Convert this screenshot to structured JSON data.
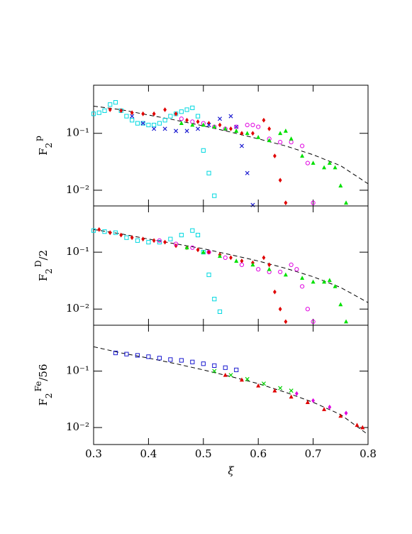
{
  "chart_data": [
    {
      "type": "scatter",
      "log_y": true,
      "ylabel": {
        "base": "F",
        "sub": "2",
        "sup": "p"
      },
      "xlim": [
        0.3,
        0.8
      ],
      "xticks": [
        0.3,
        0.4,
        0.5,
        0.6,
        0.7,
        0.8
      ],
      "ylim": [
        0.0053,
        0.7
      ],
      "yticks": [
        {
          "value": 0.1,
          "label": "10⁻¹"
        },
        {
          "value": 0.01,
          "label": "10⁻²"
        }
      ],
      "series": [
        {
          "color": "#000000",
          "style": "dashed",
          "x": [
            0.3,
            0.35,
            0.4,
            0.45,
            0.5,
            0.55,
            0.6,
            0.65,
            0.7,
            0.75,
            0.8
          ],
          "values": [
            0.3,
            0.26,
            0.21,
            0.17,
            0.135,
            0.105,
            0.08,
            0.06,
            0.042,
            0.027,
            0.013
          ]
        },
        {
          "color": "#00d8e0",
          "marker": "square",
          "x": [
            0.3,
            0.31,
            0.32,
            0.33,
            0.34,
            0.35,
            0.36,
            0.37,
            0.38,
            0.39,
            0.4,
            0.41,
            0.42,
            0.43,
            0.44,
            0.45,
            0.46,
            0.47,
            0.48,
            0.49,
            0.5,
            0.51,
            0.52
          ],
          "values": [
            0.22,
            0.23,
            0.25,
            0.32,
            0.35,
            0.25,
            0.2,
            0.17,
            0.15,
            0.15,
            0.14,
            0.14,
            0.15,
            0.17,
            0.2,
            0.22,
            0.24,
            0.26,
            0.28,
            0.2,
            0.05,
            0.02,
            0.008
          ]
        },
        {
          "color": "#e00000",
          "marker": "diamond",
          "x": [
            0.33,
            0.35,
            0.37,
            0.39,
            0.41,
            0.43,
            0.45,
            0.47,
            0.49,
            0.51,
            0.53,
            0.55,
            0.57,
            0.59,
            0.61,
            0.62,
            0.63,
            0.64,
            0.65
          ],
          "values": [
            0.26,
            0.25,
            0.23,
            0.22,
            0.22,
            0.26,
            0.22,
            0.17,
            0.16,
            0.15,
            0.14,
            0.12,
            0.1,
            0.1,
            0.17,
            0.12,
            0.04,
            0.015,
            0.006
          ]
        },
        {
          "color": "#1a1ad0",
          "marker": "cross",
          "x": [
            0.37,
            0.39,
            0.41,
            0.43,
            0.45,
            0.47,
            0.49,
            0.51,
            0.53,
            0.55,
            0.56,
            0.57,
            0.58,
            0.59
          ],
          "values": [
            0.2,
            0.15,
            0.12,
            0.12,
            0.11,
            0.11,
            0.12,
            0.14,
            0.18,
            0.2,
            0.13,
            0.06,
            0.02,
            0.0055
          ]
        },
        {
          "color": "#e000e0",
          "marker": "circle",
          "x": [
            0.46,
            0.48,
            0.5,
            0.52,
            0.54,
            0.56,
            0.58,
            0.59,
            0.6,
            0.62,
            0.64,
            0.66,
            0.68,
            0.69,
            0.7
          ],
          "values": [
            0.18,
            0.16,
            0.15,
            0.13,
            0.12,
            0.13,
            0.14,
            0.14,
            0.13,
            0.08,
            0.07,
            0.07,
            0.06,
            0.03,
            0.006
          ]
        },
        {
          "color": "#00e000",
          "marker": "triangle",
          "x": [
            0.46,
            0.48,
            0.5,
            0.52,
            0.54,
            0.56,
            0.58,
            0.6,
            0.62,
            0.64,
            0.65,
            0.66,
            0.68,
            0.7,
            0.72,
            0.73,
            0.74,
            0.75,
            0.76
          ],
          "values": [
            0.15,
            0.14,
            0.14,
            0.13,
            0.12,
            0.11,
            0.1,
            0.085,
            0.075,
            0.1,
            0.11,
            0.08,
            0.04,
            0.03,
            0.025,
            0.03,
            0.025,
            0.012,
            0.006
          ]
        }
      ]
    },
    {
      "type": "scatter",
      "log_y": true,
      "ylabel": {
        "base": "F",
        "sub": "2",
        "sup": "D",
        "suffix": "/2"
      },
      "xlim": [
        0.3,
        0.8
      ],
      "xticks": [
        0.3,
        0.4,
        0.5,
        0.6,
        0.7,
        0.8
      ],
      "ylim": [
        0.0052,
        0.65
      ],
      "yticks": [
        {
          "value": 0.1,
          "label": "10⁻¹"
        },
        {
          "value": 0.01,
          "label": "10⁻²"
        }
      ],
      "series": [
        {
          "color": "#000000",
          "style": "dashed",
          "x": [
            0.3,
            0.35,
            0.4,
            0.45,
            0.5,
            0.55,
            0.6,
            0.65,
            0.7,
            0.75,
            0.8
          ],
          "values": [
            0.25,
            0.21,
            0.17,
            0.14,
            0.115,
            0.09,
            0.07,
            0.052,
            0.037,
            0.024,
            0.013
          ]
        },
        {
          "color": "#00d8e0",
          "marker": "square",
          "x": [
            0.3,
            0.32,
            0.34,
            0.36,
            0.38,
            0.4,
            0.42,
            0.44,
            0.46,
            0.48,
            0.49,
            0.5,
            0.51,
            0.52,
            0.53
          ],
          "values": [
            0.24,
            0.23,
            0.22,
            0.18,
            0.16,
            0.15,
            0.15,
            0.17,
            0.2,
            0.24,
            0.2,
            0.1,
            0.04,
            0.015,
            0.009
          ]
        },
        {
          "color": "#e00000",
          "marker": "diamond",
          "x": [
            0.31,
            0.33,
            0.35,
            0.37,
            0.39,
            0.41,
            0.43,
            0.45,
            0.47,
            0.49,
            0.51,
            0.53,
            0.55,
            0.57,
            0.59,
            0.61,
            0.62,
            0.63,
            0.64,
            0.65
          ],
          "values": [
            0.25,
            0.22,
            0.2,
            0.18,
            0.17,
            0.16,
            0.15,
            0.13,
            0.12,
            0.11,
            0.1,
            0.09,
            0.08,
            0.07,
            0.065,
            0.08,
            0.06,
            0.02,
            0.01,
            0.006
          ]
        },
        {
          "color": "#e000e0",
          "marker": "circle",
          "x": [
            0.42,
            0.45,
            0.48,
            0.51,
            0.54,
            0.57,
            0.6,
            0.62,
            0.64,
            0.66,
            0.67,
            0.68,
            0.69,
            0.7
          ],
          "values": [
            0.16,
            0.14,
            0.12,
            0.1,
            0.08,
            0.06,
            0.05,
            0.045,
            0.045,
            0.06,
            0.05,
            0.025,
            0.01,
            0.006
          ]
        },
        {
          "color": "#00e000",
          "marker": "triangle",
          "x": [
            0.47,
            0.5,
            0.53,
            0.56,
            0.59,
            0.62,
            0.65,
            0.68,
            0.7,
            0.72,
            0.73,
            0.74,
            0.75,
            0.76
          ],
          "values": [
            0.12,
            0.1,
            0.085,
            0.07,
            0.06,
            0.05,
            0.04,
            0.035,
            0.03,
            0.03,
            0.032,
            0.025,
            0.012,
            0.006
          ]
        }
      ]
    },
    {
      "type": "scatter",
      "log_y": true,
      "ylabel": {
        "base": "F",
        "sub": "2",
        "sup": "Fe",
        "suffix": "/56"
      },
      "xlabel": "ξ",
      "xlim": [
        0.3,
        0.8
      ],
      "xticks": [
        0.3,
        0.4,
        0.5,
        0.6,
        0.7,
        0.8
      ],
      "ylim": [
        0.005,
        0.65
      ],
      "yticks": [
        {
          "value": 0.1,
          "label": "10⁻¹"
        },
        {
          "value": 0.01,
          "label": "10⁻²"
        }
      ],
      "series": [
        {
          "color": "#000000",
          "style": "dashed",
          "x": [
            0.3,
            0.35,
            0.4,
            0.45,
            0.5,
            0.55,
            0.6,
            0.65,
            0.7,
            0.75,
            0.8
          ],
          "values": [
            0.27,
            0.21,
            0.17,
            0.135,
            0.105,
            0.08,
            0.06,
            0.042,
            0.028,
            0.017,
            0.0075
          ]
        },
        {
          "color": "#1a1ad0",
          "marker": "square",
          "x": [
            0.34,
            0.36,
            0.38,
            0.4,
            0.42,
            0.44,
            0.46,
            0.48,
            0.5,
            0.52,
            0.54,
            0.56
          ],
          "values": [
            0.21,
            0.2,
            0.19,
            0.18,
            0.17,
            0.16,
            0.155,
            0.145,
            0.135,
            0.125,
            0.115,
            0.105
          ]
        },
        {
          "color": "#00d000",
          "marker": "cross",
          "x": [
            0.52,
            0.55,
            0.58,
            0.61,
            0.64,
            0.66
          ],
          "values": [
            0.1,
            0.085,
            0.072,
            0.06,
            0.05,
            0.045
          ]
        },
        {
          "color": "#e00000",
          "marker": "triangle",
          "x": [
            0.54,
            0.57,
            0.6,
            0.63,
            0.66,
            0.69,
            0.72,
            0.75,
            0.78,
            0.79
          ],
          "values": [
            0.085,
            0.07,
            0.055,
            0.045,
            0.035,
            0.028,
            0.021,
            0.016,
            0.011,
            0.01
          ]
        },
        {
          "color": "#e000e0",
          "marker": "diamond",
          "x": [
            0.67,
            0.7,
            0.73,
            0.76
          ],
          "values": [
            0.04,
            0.03,
            0.023,
            0.018
          ]
        }
      ]
    }
  ]
}
